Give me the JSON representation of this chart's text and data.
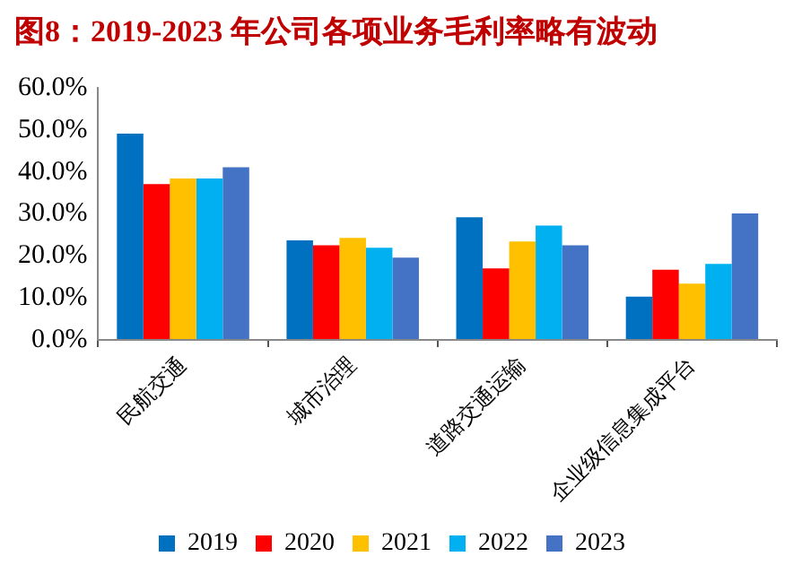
{
  "chart_data": {
    "type": "bar",
    "title": "图8：2019-2023 年公司各项业务毛利率略有波动",
    "categories": [
      "民航交通",
      "城市治理",
      "道路交通运输",
      "企业级信息集成平台"
    ],
    "series": [
      {
        "name": "2019",
        "color": "#0070c0",
        "values": [
          49.1,
          23.7,
          29.2,
          10.3
        ]
      },
      {
        "name": "2020",
        "color": "#ff0000",
        "values": [
          37.1,
          22.5,
          17.0,
          16.7
        ]
      },
      {
        "name": "2021",
        "color": "#ffc000",
        "values": [
          38.4,
          24.3,
          23.4,
          13.4
        ]
      },
      {
        "name": "2022",
        "color": "#00b0f0",
        "values": [
          38.4,
          21.9,
          27.2,
          18.1
        ]
      },
      {
        "name": "2023",
        "color": "#4472c4",
        "values": [
          41.1,
          19.6,
          22.5,
          30.1
        ]
      }
    ],
    "ylim": [
      0,
      60
    ],
    "yticks": [
      {
        "value": 0,
        "label": "0.0%"
      },
      {
        "value": 10,
        "label": "10.0%"
      },
      {
        "value": 20,
        "label": "20.0%"
      },
      {
        "value": 30,
        "label": "30.0%"
      },
      {
        "value": 40,
        "label": "40.0%"
      },
      {
        "value": 50,
        "label": "50.0%"
      },
      {
        "value": 60,
        "label": "60.0%"
      }
    ],
    "grid": false,
    "legend": "bottom"
  }
}
